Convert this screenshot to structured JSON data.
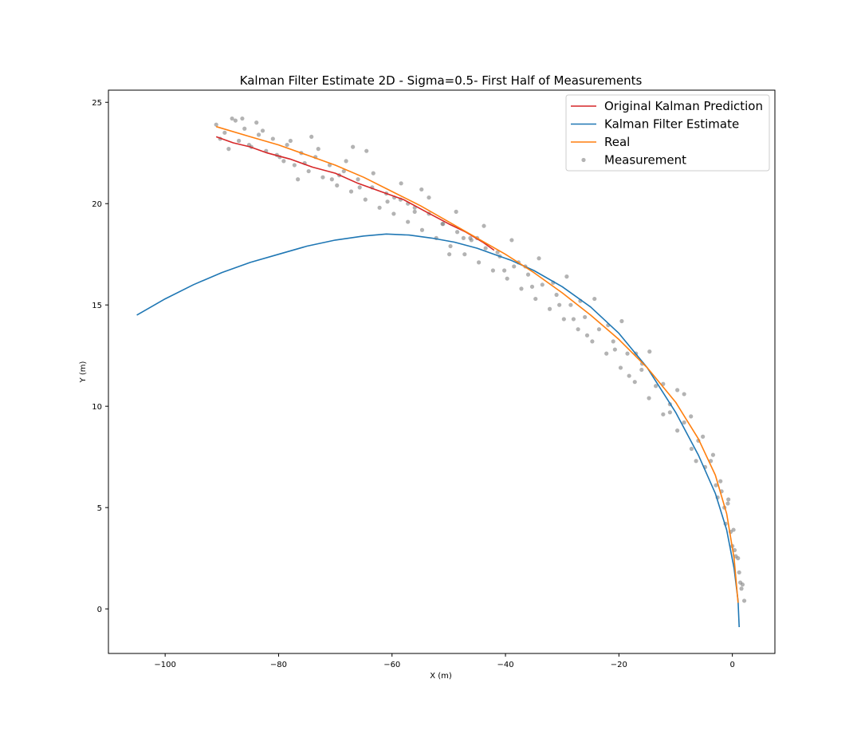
{
  "chart_data": {
    "type": "line",
    "title": "Kalman Filter Estimate 2D - Sigma=0.5- First Half of Measurements",
    "xlabel": "X (m)",
    "ylabel": "Y (m)",
    "xlim": [
      -110,
      7.5
    ],
    "ylim": [
      -2.2,
      25.6
    ],
    "xticks": [
      -100,
      -80,
      -60,
      -40,
      -20,
      0
    ],
    "yticks": [
      0,
      5,
      10,
      15,
      20,
      25
    ],
    "xtick_labels": [
      "−100",
      "−80",
      "−60",
      "−40",
      "−20",
      "0"
    ],
    "ytick_labels": [
      "0",
      "5",
      "10",
      "15",
      "20",
      "25"
    ],
    "grid": false,
    "legend_position": "top-right",
    "series": [
      {
        "name": "Original Kalman Prediction",
        "kind": "line",
        "color": "#d62728",
        "x": [
          -91.0,
          -88.0,
          -85.0,
          -82.0,
          -78.0,
          -74.0,
          -70.0,
          -66.0,
          -62.0,
          -58.0,
          -54.0,
          -50.0,
          -47.0,
          -44.0,
          -42.0
        ],
        "y": [
          23.3,
          23.0,
          22.8,
          22.5,
          22.2,
          21.8,
          21.5,
          21.0,
          20.6,
          20.2,
          19.6,
          19.0,
          18.6,
          18.1,
          17.7
        ]
      },
      {
        "name": "Kalman Filter Estimate",
        "kind": "line",
        "color": "#1f77b4",
        "x": [
          -105.0,
          -100.0,
          -95.0,
          -90.0,
          -85.0,
          -80.0,
          -75.0,
          -70.0,
          -65.0,
          -61.0,
          -57.0,
          -53.0,
          -49.0,
          -45.0,
          -42.0,
          -39.0,
          -35.0,
          -30.0,
          -25.0,
          -20.0,
          -15.0,
          -10.0,
          -6.0,
          -3.0,
          -1.0,
          0.3,
          1.0,
          1.2
        ],
        "y": [
          14.5,
          15.3,
          16.0,
          16.6,
          17.1,
          17.5,
          17.9,
          18.2,
          18.4,
          18.5,
          18.45,
          18.3,
          18.1,
          17.8,
          17.5,
          17.2,
          16.7,
          15.9,
          14.9,
          13.6,
          11.9,
          9.7,
          7.6,
          5.7,
          3.9,
          2.0,
          0.4,
          -0.9
        ]
      },
      {
        "name": "Real",
        "kind": "line",
        "color": "#ff7f0e",
        "x": [
          -91.0,
          -85.0,
          -80.0,
          -75.0,
          -70.0,
          -65.0,
          -60.0,
          -55.0,
          -50.0,
          -45.0,
          -40.0,
          -35.0,
          -30.0,
          -25.0,
          -20.0,
          -15.0,
          -10.0,
          -6.0,
          -3.0,
          -1.0,
          0.3,
          1.0
        ],
        "y": [
          23.8,
          23.3,
          22.9,
          22.4,
          21.9,
          21.3,
          20.6,
          19.9,
          19.1,
          18.3,
          17.5,
          16.6,
          15.6,
          14.5,
          13.3,
          11.9,
          10.2,
          8.4,
          6.6,
          4.7,
          2.5,
          0.3
        ]
      },
      {
        "name": "Measurement",
        "kind": "scatter",
        "color": "#808080",
        "x": [
          -91.0,
          -89.5,
          -88.2,
          -87.0,
          -86.0,
          -84.8,
          -83.5,
          -82.2,
          -81.0,
          -79.8,
          -78.5,
          -77.2,
          -76.0,
          -74.7,
          -73.5,
          -72.2,
          -71.0,
          -69.7,
          -68.5,
          -67.2,
          -66.0,
          -64.7,
          -63.5,
          -62.2,
          -61.0,
          -59.7,
          -58.5,
          -57.2,
          -56.0,
          -54.7,
          -53.5,
          -52.2,
          -51.0,
          -49.7,
          -48.5,
          -47.2,
          -46.0,
          -44.7,
          -43.5,
          -42.2,
          -41.0,
          -39.7,
          -38.5,
          -37.2,
          -36.0,
          -34.7,
          -33.5,
          -32.2,
          -31.0,
          -29.7,
          -28.5,
          -27.2,
          -26.0,
          -24.7,
          -23.5,
          -22.2,
          -21.0,
          -19.7,
          -18.5,
          -17.2,
          -16.0,
          -14.7,
          -13.5,
          -12.2,
          -11.0,
          -9.7,
          -8.5,
          -7.2,
          -6.0,
          -4.8,
          -3.8,
          -2.9,
          -2.1,
          -1.4,
          -0.8,
          -0.3,
          0.2,
          0.6,
          1.0,
          1.4,
          1.8,
          2.1,
          -90.3,
          -87.6,
          -85.2,
          -82.8,
          -80.3,
          -77.9,
          -75.4,
          -73.0,
          -70.6,
          -68.1,
          -65.7,
          -63.3,
          -60.8,
          -58.4,
          -56.0,
          -53.5,
          -51.1,
          -48.7,
          -46.2,
          -43.8,
          -41.4,
          -38.9,
          -36.5,
          -34.1,
          -31.6,
          -29.2,
          -26.8,
          -24.3,
          -21.9,
          -19.5,
          -17.0,
          -14.6,
          -12.2,
          -9.7,
          -7.3,
          -5.2,
          -3.4,
          -1.9,
          -0.7,
          0.4,
          1.2,
          -88.8,
          -83.9,
          -79.1,
          -74.2,
          -69.3,
          -64.5,
          -59.6,
          -54.8,
          -49.9,
          -45.0,
          -40.2,
          -35.3,
          -30.5,
          -25.6,
          -20.7,
          -15.9,
          -11.0,
          -6.4,
          -2.6,
          0.0,
          1.6,
          -86.4,
          -76.6,
          -66.9,
          -57.2,
          -47.4,
          -37.7,
          -28.0,
          -18.2,
          -8.5,
          -1.2
        ],
        "y": [
          23.9,
          23.5,
          24.2,
          23.1,
          23.7,
          22.8,
          23.4,
          22.6,
          23.2,
          22.3,
          22.9,
          21.9,
          22.5,
          21.6,
          22.3,
          21.3,
          21.9,
          20.9,
          21.6,
          20.6,
          21.2,
          20.2,
          20.8,
          19.8,
          20.5,
          19.5,
          20.2,
          19.1,
          19.8,
          18.7,
          19.5,
          18.3,
          19.0,
          17.9,
          18.6,
          17.5,
          18.2,
          17.1,
          17.8,
          16.7,
          17.4,
          16.3,
          16.9,
          15.8,
          16.5,
          15.3,
          16.0,
          14.8,
          15.5,
          14.3,
          15.0,
          13.8,
          14.4,
          13.2,
          13.8,
          12.6,
          13.2,
          11.9,
          12.6,
          11.2,
          11.8,
          10.4,
          11.0,
          9.6,
          10.1,
          8.8,
          9.2,
          7.9,
          8.3,
          7.0,
          7.3,
          6.1,
          6.3,
          5.0,
          5.2,
          3.8,
          3.9,
          2.6,
          2.5,
          1.3,
          1.2,
          0.4,
          23.2,
          24.1,
          22.9,
          23.6,
          22.4,
          23.1,
          22.0,
          22.7,
          21.2,
          22.1,
          20.8,
          21.5,
          20.1,
          21.0,
          19.6,
          20.3,
          19.0,
          19.6,
          18.3,
          18.9,
          17.6,
          18.2,
          16.9,
          17.3,
          16.1,
          16.4,
          15.2,
          15.3,
          14.0,
          14.2,
          12.6,
          12.7,
          11.1,
          10.8,
          9.5,
          8.5,
          7.6,
          5.8,
          5.4,
          2.9,
          1.8,
          22.7,
          24.0,
          22.1,
          23.3,
          21.4,
          22.6,
          20.3,
          20.7,
          17.5,
          18.3,
          16.7,
          15.9,
          15.0,
          13.5,
          12.8,
          12.1,
          9.7,
          7.3,
          5.5,
          3.1,
          1.0,
          24.2,
          21.2,
          22.8,
          20.0,
          18.3,
          17.1,
          14.3,
          11.5,
          10.6,
          4.2
        ]
      }
    ]
  }
}
